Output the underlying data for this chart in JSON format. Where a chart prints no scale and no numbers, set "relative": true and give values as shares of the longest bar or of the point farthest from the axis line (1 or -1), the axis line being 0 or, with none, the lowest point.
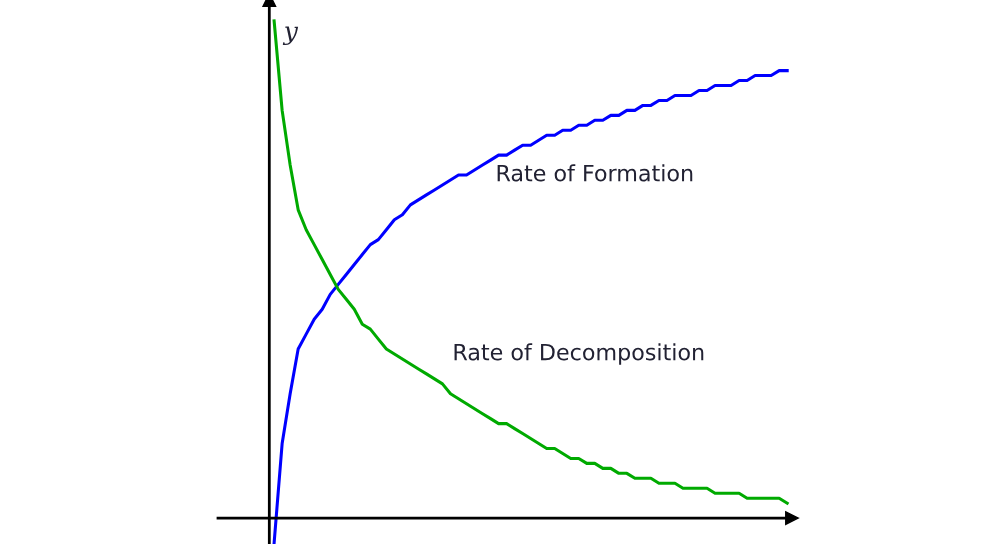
{
  "chart_data": {
    "type": "line",
    "relative": true,
    "ylabel": "y",
    "legend": false,
    "categories": [
      null,
      null,
      null,
      null,
      null,
      null,
      null,
      null,
      null,
      null,
      null,
      null,
      null,
      null,
      null,
      null,
      null,
      null,
      null,
      null,
      null,
      null,
      null,
      null,
      null,
      null,
      null,
      null,
      null,
      null,
      null,
      null,
      null,
      null,
      null,
      null,
      null,
      null,
      null,
      null,
      null,
      null,
      null,
      null,
      null,
      null,
      null,
      null,
      null,
      null,
      null,
      null,
      null,
      null,
      null,
      null,
      null,
      null,
      null,
      null,
      null,
      null,
      null,
      null,
      null
    ],
    "series": [
      {
        "name": "Rate of Formation",
        "color": "#0000ff",
        "values": [
          -0.05,
          0.15,
          0.25,
          0.34,
          0.37,
          0.4,
          0.42,
          0.45,
          0.47,
          0.49,
          0.51,
          0.53,
          0.55,
          0.56,
          0.58,
          0.6,
          0.61,
          0.63,
          0.64,
          0.65,
          0.66,
          0.67,
          0.68,
          0.69,
          0.69,
          0.7,
          0.71,
          0.72,
          0.73,
          0.73,
          0.74,
          0.75,
          0.75,
          0.76,
          0.77,
          0.77,
          0.78,
          0.78,
          0.79,
          0.79,
          0.8,
          0.8,
          0.81,
          0.81,
          0.82,
          0.82,
          0.83,
          0.83,
          0.84,
          0.84,
          0.85,
          0.85,
          0.85,
          0.86,
          0.86,
          0.87,
          0.87,
          0.87,
          0.88,
          0.88,
          0.89,
          0.89,
          0.89,
          0.9,
          0.9
        ]
      },
      {
        "name": "Rate of Decomposition",
        "color": "#00aa00",
        "values": [
          1.0,
          0.82,
          0.71,
          0.62,
          0.58,
          0.55,
          0.52,
          0.49,
          0.46,
          0.44,
          0.42,
          0.39,
          0.38,
          0.36,
          0.34,
          0.33,
          0.32,
          0.31,
          0.3,
          0.29,
          0.28,
          0.27,
          0.25,
          0.24,
          0.23,
          0.22,
          0.21,
          0.2,
          0.19,
          0.19,
          0.18,
          0.17,
          0.16,
          0.15,
          0.14,
          0.14,
          0.13,
          0.12,
          0.12,
          0.11,
          0.11,
          0.1,
          0.1,
          0.09,
          0.09,
          0.08,
          0.08,
          0.08,
          0.07,
          0.07,
          0.07,
          0.06,
          0.06,
          0.06,
          0.06,
          0.05,
          0.05,
          0.05,
          0.05,
          0.04,
          0.04,
          0.04,
          0.04,
          0.04,
          0.03
        ]
      }
    ]
  }
}
